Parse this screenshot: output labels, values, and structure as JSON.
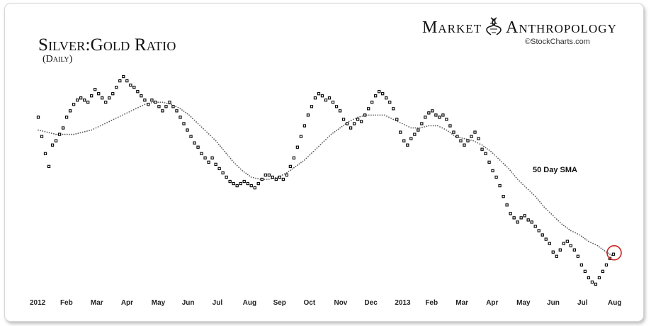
{
  "header": {
    "brand_left": "Market",
    "brand_right": "Anthropology",
    "brand_icon": "dna-helix-icon",
    "credit": "©StockCharts.com"
  },
  "chart_data": {
    "type": "scatter",
    "title": "Silver:Gold Ratio",
    "subtitle": "(Daily)",
    "xlabel": "",
    "ylabel": "",
    "grid": false,
    "legend": "none",
    "x_ticks": [
      "2012",
      "Feb",
      "Mar",
      "Apr",
      "May",
      "Jun",
      "Jul",
      "Aug",
      "Sep",
      "Oct",
      "Nov",
      "Dec",
      "2013",
      "Feb",
      "Mar",
      "Apr",
      "May",
      "Jun",
      "Jul",
      "Aug"
    ],
    "y_range_relative": [
      0,
      100
    ],
    "annotations": [
      {
        "text": "50 Day SMA",
        "target": "sma"
      },
      {
        "text": "",
        "type": "circle",
        "target": "latest_price",
        "color": "#cc2222"
      }
    ],
    "series": [
      {
        "kind": "price",
        "marker": "square",
        "color": "#000000",
        "points": [
          [
            0,
            79
          ],
          [
            0.2,
            70
          ],
          [
            0.4,
            62
          ],
          [
            0.6,
            56
          ],
          [
            0.8,
            66
          ],
          [
            1.0,
            68
          ],
          [
            1.2,
            71
          ],
          [
            1.4,
            74
          ],
          [
            1.6,
            79
          ],
          [
            1.8,
            82
          ],
          [
            2.0,
            85
          ],
          [
            2.2,
            87
          ],
          [
            2.4,
            88
          ],
          [
            2.6,
            87
          ],
          [
            2.8,
            86
          ],
          [
            3.0,
            89
          ],
          [
            3.2,
            92
          ],
          [
            3.4,
            90
          ],
          [
            3.6,
            88
          ],
          [
            3.8,
            86
          ],
          [
            4.0,
            88
          ],
          [
            4.2,
            90
          ],
          [
            4.4,
            93
          ],
          [
            4.6,
            96
          ],
          [
            4.8,
            98
          ],
          [
            5.0,
            96
          ],
          [
            5.2,
            94
          ],
          [
            5.4,
            93
          ],
          [
            5.6,
            91
          ],
          [
            5.8,
            89
          ],
          [
            6.0,
            87
          ],
          [
            6.2,
            85
          ],
          [
            6.4,
            87
          ],
          [
            6.6,
            86
          ],
          [
            6.8,
            84
          ],
          [
            7.0,
            82
          ],
          [
            7.2,
            84
          ],
          [
            7.4,
            86
          ],
          [
            7.6,
            84
          ],
          [
            7.8,
            82
          ],
          [
            8.0,
            79
          ],
          [
            8.2,
            76
          ],
          [
            8.4,
            73
          ],
          [
            8.6,
            70
          ],
          [
            8.8,
            67
          ],
          [
            9.0,
            65
          ],
          [
            9.2,
            62
          ],
          [
            9.4,
            60
          ],
          [
            9.6,
            58
          ],
          [
            9.8,
            60
          ],
          [
            10.0,
            57
          ],
          [
            10.2,
            55
          ],
          [
            10.4,
            53
          ],
          [
            10.6,
            51
          ],
          [
            10.8,
            49
          ],
          [
            11.0,
            48
          ],
          [
            11.2,
            47
          ],
          [
            11.4,
            48
          ],
          [
            11.6,
            49
          ],
          [
            11.8,
            48
          ],
          [
            12.0,
            47
          ],
          [
            12.2,
            46
          ],
          [
            12.4,
            48
          ],
          [
            12.6,
            50
          ],
          [
            12.8,
            52
          ],
          [
            13.0,
            52
          ],
          [
            13.2,
            51
          ],
          [
            13.4,
            50
          ],
          [
            13.6,
            51
          ],
          [
            13.8,
            50
          ],
          [
            14.0,
            52
          ],
          [
            14.2,
            56
          ],
          [
            14.4,
            60
          ],
          [
            14.6,
            65
          ],
          [
            14.8,
            70
          ],
          [
            15.0,
            75
          ],
          [
            15.2,
            80
          ],
          [
            15.4,
            84
          ],
          [
            15.6,
            88
          ],
          [
            15.8,
            90
          ],
          [
            16.0,
            89
          ],
          [
            16.2,
            87
          ],
          [
            16.4,
            88
          ],
          [
            16.6,
            86
          ],
          [
            16.8,
            84
          ],
          [
            17.0,
            82
          ],
          [
            17.2,
            78
          ],
          [
            17.4,
            76
          ],
          [
            17.6,
            74
          ],
          [
            17.8,
            76
          ],
          [
            18.0,
            78
          ],
          [
            18.2,
            77
          ],
          [
            18.4,
            80
          ],
          [
            18.6,
            83
          ],
          [
            18.8,
            86
          ],
          [
            19.0,
            89
          ],
          [
            19.2,
            91
          ],
          [
            19.4,
            90
          ],
          [
            19.6,
            88
          ],
          [
            19.8,
            86
          ],
          [
            20.0,
            83
          ],
          [
            20.2,
            78
          ],
          [
            20.4,
            72
          ],
          [
            20.6,
            68
          ],
          [
            20.8,
            66
          ],
          [
            21.0,
            69
          ],
          [
            21.2,
            71
          ],
          [
            21.4,
            73
          ],
          [
            21.6,
            76
          ],
          [
            21.8,
            79
          ],
          [
            22.0,
            81
          ],
          [
            22.2,
            82
          ],
          [
            22.4,
            80
          ],
          [
            22.6,
            79
          ],
          [
            22.8,
            80
          ],
          [
            23.0,
            78
          ],
          [
            23.2,
            75
          ],
          [
            23.4,
            72
          ],
          [
            23.6,
            70
          ],
          [
            23.8,
            68
          ],
          [
            24.0,
            66
          ],
          [
            24.2,
            68
          ],
          [
            24.4,
            70
          ],
          [
            24.6,
            72
          ],
          [
            24.8,
            69
          ],
          [
            25.0,
            64
          ],
          [
            25.2,
            62
          ],
          [
            25.4,
            58
          ],
          [
            25.6,
            54
          ],
          [
            25.8,
            51
          ],
          [
            26.0,
            47
          ],
          [
            26.2,
            42
          ],
          [
            26.4,
            38
          ],
          [
            26.6,
            34
          ],
          [
            26.8,
            32
          ],
          [
            27.0,
            30
          ],
          [
            27.2,
            32
          ],
          [
            27.4,
            33
          ],
          [
            27.6,
            31
          ],
          [
            27.8,
            30
          ],
          [
            28.0,
            28
          ],
          [
            28.2,
            26
          ],
          [
            28.4,
            24
          ],
          [
            28.6,
            22
          ],
          [
            28.8,
            20
          ],
          [
            29.0,
            16
          ],
          [
            29.2,
            14
          ],
          [
            29.4,
            17
          ],
          [
            29.6,
            20
          ],
          [
            29.8,
            21
          ],
          [
            30.0,
            19
          ],
          [
            30.2,
            17
          ],
          [
            30.4,
            14
          ],
          [
            30.6,
            10
          ],
          [
            30.8,
            7
          ],
          [
            31.0,
            4
          ],
          [
            31.2,
            2
          ],
          [
            31.4,
            1
          ],
          [
            31.6,
            4
          ],
          [
            31.8,
            7
          ],
          [
            32.0,
            10
          ],
          [
            32.2,
            13
          ],
          [
            32.4,
            15
          ]
        ]
      },
      {
        "kind": "sma",
        "name": "50 Day SMA",
        "marker": "dot",
        "color": "#555555",
        "points": [
          [
            0,
            73
          ],
          [
            0.5,
            72
          ],
          [
            1.0,
            71
          ],
          [
            1.5,
            71
          ],
          [
            2.0,
            71
          ],
          [
            2.5,
            72
          ],
          [
            3.0,
            73
          ],
          [
            3.5,
            75
          ],
          [
            4.0,
            77
          ],
          [
            4.5,
            79
          ],
          [
            5.0,
            81
          ],
          [
            5.5,
            83
          ],
          [
            6.0,
            85
          ],
          [
            6.5,
            86
          ],
          [
            7.0,
            86
          ],
          [
            7.5,
            85
          ],
          [
            8.0,
            83
          ],
          [
            8.5,
            80
          ],
          [
            9.0,
            76
          ],
          [
            9.5,
            72
          ],
          [
            10.0,
            68
          ],
          [
            10.5,
            63
          ],
          [
            11.0,
            58
          ],
          [
            11.5,
            54
          ],
          [
            12.0,
            51
          ],
          [
            12.5,
            50
          ],
          [
            13.0,
            50
          ],
          [
            13.5,
            51
          ],
          [
            14.0,
            53
          ],
          [
            14.5,
            56
          ],
          [
            15.0,
            59
          ],
          [
            15.5,
            63
          ],
          [
            16.0,
            67
          ],
          [
            16.5,
            71
          ],
          [
            17.0,
            74
          ],
          [
            17.5,
            77
          ],
          [
            18.0,
            79
          ],
          [
            18.5,
            80
          ],
          [
            19.0,
            80
          ],
          [
            19.5,
            80
          ],
          [
            20.0,
            78
          ],
          [
            20.5,
            76
          ],
          [
            21.0,
            74
          ],
          [
            21.5,
            74
          ],
          [
            22.0,
            75
          ],
          [
            22.5,
            75
          ],
          [
            23.0,
            73
          ],
          [
            23.5,
            70
          ],
          [
            24.0,
            69
          ],
          [
            24.5,
            68
          ],
          [
            25.0,
            66
          ],
          [
            25.5,
            63
          ],
          [
            26.0,
            59
          ],
          [
            26.5,
            55
          ],
          [
            27.0,
            50
          ],
          [
            27.5,
            46
          ],
          [
            28.0,
            42
          ],
          [
            28.5,
            37
          ],
          [
            29.0,
            33
          ],
          [
            29.5,
            29
          ],
          [
            30.0,
            26
          ],
          [
            30.5,
            24
          ],
          [
            31.0,
            21
          ],
          [
            31.5,
            19
          ],
          [
            32.0,
            16
          ],
          [
            32.4,
            14
          ]
        ]
      }
    ]
  }
}
